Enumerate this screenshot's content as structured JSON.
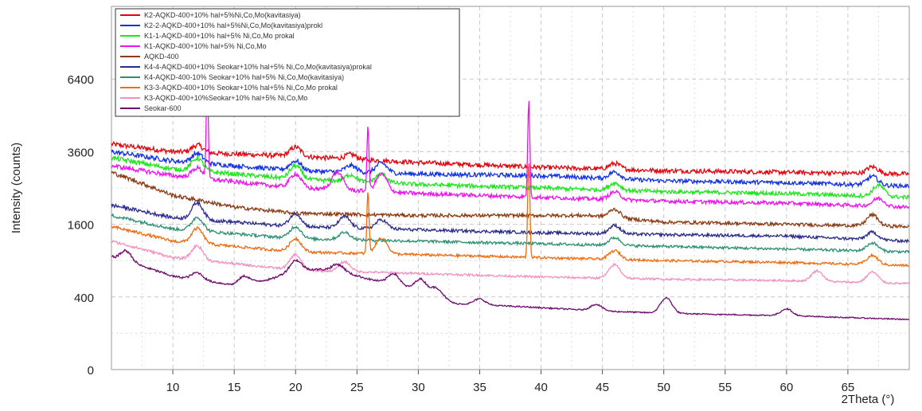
{
  "chart_data": {
    "type": "line",
    "title": "",
    "xlabel": "2Theta (°)",
    "ylabel": "Intensity (counts)",
    "x_ticks": [
      10,
      15,
      20,
      25,
      30,
      35,
      40,
      45,
      50,
      55,
      60,
      65
    ],
    "y_ticks": [
      0,
      400,
      1600,
      3600,
      6400
    ],
    "xlim": [
      5,
      70
    ],
    "ylim": [
      0,
      10000
    ],
    "y_scale": "sqrt",
    "grid": "dashed",
    "legend_position": "top-left",
    "series": [
      {
        "name": "K2-AQKD-400+10%  hal+5%Ni,Co,Mo(kavitasiya)",
        "color": "#e8000b",
        "baseline": [
          [
            5,
            3850
          ],
          [
            10,
            3600
          ],
          [
            20,
            3450
          ],
          [
            30,
            3250
          ],
          [
            40,
            3100
          ],
          [
            50,
            3000
          ],
          [
            60,
            2950
          ],
          [
            70,
            2900
          ]
        ],
        "peaks": [
          [
            12,
            250
          ],
          [
            20,
            300
          ],
          [
            24.5,
            150
          ],
          [
            46,
            180
          ],
          [
            67,
            200
          ]
        ]
      },
      {
        "name": "K2-2-AQKD-400+10% hal+5%Ni,Co,Mo(kavitasiya)prokl",
        "color": "#1230e8",
        "baseline": [
          [
            5,
            3600
          ],
          [
            10,
            3300
          ],
          [
            20,
            3000
          ],
          [
            30,
            2900
          ],
          [
            40,
            2850
          ],
          [
            50,
            2700
          ],
          [
            60,
            2650
          ],
          [
            70,
            2550
          ]
        ],
        "peaks": [
          [
            12,
            300
          ],
          [
            20,
            300
          ],
          [
            24.5,
            200
          ],
          [
            27,
            300
          ],
          [
            46,
            200
          ],
          [
            67,
            250
          ]
        ]
      },
      {
        "name": "K1-1-AQKD-400+10% hal+5% Ni,Co,Mo prokal",
        "color": "#18e818",
        "baseline": [
          [
            5,
            3400
          ],
          [
            10,
            3050
          ],
          [
            20,
            2750
          ],
          [
            30,
            2600
          ],
          [
            40,
            2500
          ],
          [
            50,
            2400
          ],
          [
            60,
            2350
          ],
          [
            70,
            2250
          ]
        ],
        "peaks": [
          [
            12,
            400
          ],
          [
            20,
            400
          ],
          [
            24.5,
            200
          ],
          [
            27,
            250
          ],
          [
            46,
            200
          ],
          [
            67.5,
            300
          ]
        ]
      },
      {
        "name": "K1-AQKD-400+10% hal+5% Ni,Co,Mo",
        "color": "#ee12ee",
        "baseline": [
          [
            5,
            3150
          ],
          [
            10,
            2850
          ],
          [
            20,
            2500
          ],
          [
            30,
            2350
          ],
          [
            40,
            2250
          ],
          [
            50,
            2150
          ],
          [
            60,
            2100
          ],
          [
            70,
            2000
          ]
        ],
        "peaks": [
          [
            12,
            300
          ],
          [
            12.8,
            3400
          ],
          [
            20,
            400
          ],
          [
            23.4,
            500
          ],
          [
            25.9,
            2000
          ],
          [
            27,
            500
          ],
          [
            39,
            3200
          ],
          [
            46,
            200
          ],
          [
            67.5,
            200
          ]
        ]
      },
      {
        "name": "AQKD-400",
        "color": "#8b3a12",
        "baseline": [
          [
            5,
            2950
          ],
          [
            10,
            2300
          ],
          [
            15,
            2000
          ],
          [
            20,
            1850
          ],
          [
            30,
            1800
          ],
          [
            40,
            1800
          ],
          [
            44,
            1800
          ],
          [
            50,
            1650
          ],
          [
            60,
            1600
          ],
          [
            70,
            1550
          ]
        ],
        "peaks": [
          [
            46,
            200
          ],
          [
            67,
            250
          ]
        ]
      },
      {
        "name": "K4-4-AQKD-400+10% Seokar+10% hal+5% Ni,Co,Mo(kavitasiya)prokal",
        "color": "#2a2a8c",
        "baseline": [
          [
            5,
            2050
          ],
          [
            10,
            1750
          ],
          [
            20,
            1550
          ],
          [
            30,
            1480
          ],
          [
            40,
            1420
          ],
          [
            50,
            1380
          ],
          [
            60,
            1350
          ],
          [
            70,
            1250
          ]
        ],
        "peaks": [
          [
            12,
            400
          ],
          [
            20,
            300
          ],
          [
            24,
            250
          ],
          [
            27,
            200
          ],
          [
            46,
            180
          ],
          [
            67,
            150
          ]
        ]
      },
      {
        "name": "K4-AQKD-400-10% Seokar+10% hal+5% Ni,Co,Mo(kavitasiya)",
        "color": "#2a9070",
        "baseline": [
          [
            5,
            1800
          ],
          [
            10,
            1500
          ],
          [
            20,
            1300
          ],
          [
            30,
            1250
          ],
          [
            40,
            1200
          ],
          [
            50,
            1150
          ],
          [
            60,
            1100
          ],
          [
            70,
            1050
          ]
        ],
        "peaks": [
          [
            12,
            300
          ],
          [
            20,
            250
          ],
          [
            24,
            150
          ],
          [
            46,
            150
          ],
          [
            67,
            150
          ]
        ]
      },
      {
        "name": "K3-3-AQKD-400+10% Seokar+10% hal+5% Ni,Co,Mo prokal",
        "color": "#f26a0c",
        "baseline": [
          [
            5,
            1550
          ],
          [
            10,
            1250
          ],
          [
            20,
            1050
          ],
          [
            30,
            1000
          ],
          [
            40,
            950
          ],
          [
            50,
            900
          ],
          [
            60,
            870
          ],
          [
            70,
            820
          ]
        ],
        "peaks": [
          [
            12,
            300
          ],
          [
            20,
            250
          ],
          [
            25.9,
            1400
          ],
          [
            27,
            300
          ],
          [
            39,
            2400
          ],
          [
            46,
            150
          ],
          [
            67,
            150
          ]
        ]
      },
      {
        "name": "K3-AQKD-400+10%Seokar+10% hal+5% Ni,Co,Mo",
        "color": "#f48fbe",
        "baseline": [
          [
            5,
            1250
          ],
          [
            10,
            950
          ],
          [
            20,
            750
          ],
          [
            30,
            700
          ],
          [
            40,
            650
          ],
          [
            50,
            620
          ],
          [
            60,
            600
          ],
          [
            70,
            560
          ]
        ],
        "peaks": [
          [
            12,
            250
          ],
          [
            20,
            250
          ],
          [
            24,
            150
          ],
          [
            46,
            200
          ],
          [
            62.5,
            150
          ],
          [
            67,
            150
          ]
        ]
      },
      {
        "name": "Seokar-600",
        "color": "#6e0a6e",
        "baseline": [
          [
            5,
            960
          ],
          [
            10,
            660
          ],
          [
            15,
            540
          ],
          [
            18,
            620
          ],
          [
            20,
            760
          ],
          [
            23,
            760
          ],
          [
            26,
            620
          ],
          [
            30,
            480
          ],
          [
            33,
            330
          ],
          [
            40,
            290
          ],
          [
            45,
            260
          ],
          [
            50,
            240
          ],
          [
            60,
            220
          ],
          [
            70,
            190
          ]
        ],
        "peaks": [
          [
            6.2,
            180
          ],
          [
            12,
            100
          ],
          [
            15.8,
            100
          ],
          [
            20,
            150
          ],
          [
            23.5,
            100
          ],
          [
            28,
            150
          ],
          [
            30.2,
            150
          ],
          [
            31.5,
            100
          ],
          [
            35,
            60
          ],
          [
            44.5,
            60
          ],
          [
            50.2,
            150
          ],
          [
            60,
            60
          ]
        ]
      }
    ]
  }
}
